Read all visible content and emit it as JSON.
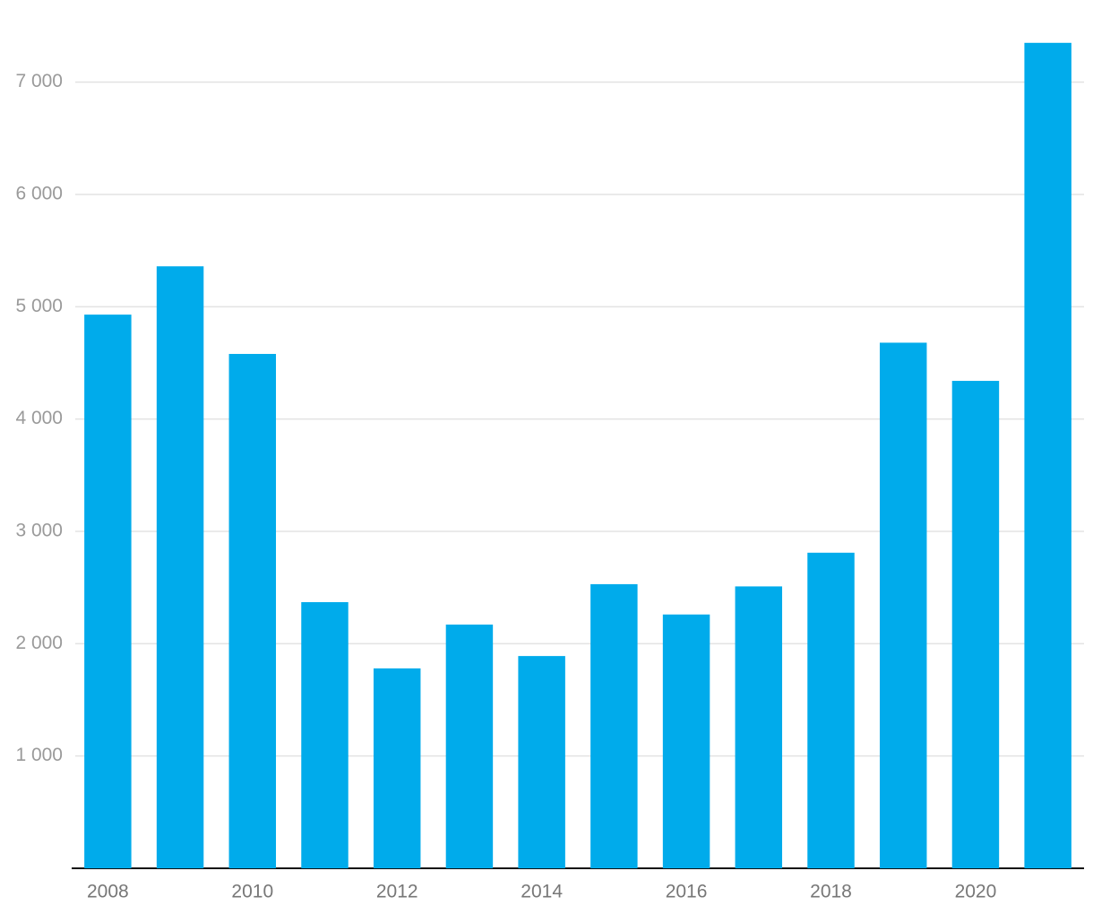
{
  "chart_data": {
    "type": "bar",
    "categories": [
      "2008",
      null,
      "2010",
      null,
      "2012",
      null,
      "2014",
      null,
      "2016",
      null,
      "2018",
      null,
      "2020",
      null
    ],
    "values": [
      4930,
      5360,
      4580,
      2370,
      1780,
      2170,
      1890,
      2530,
      2260,
      2510,
      2810,
      4680,
      4340,
      7350
    ],
    "color": "#00abeb",
    "ylim": [
      0,
      7500
    ],
    "yticks": [
      {
        "value": 1000,
        "label": "1 000"
      },
      {
        "value": 2000,
        "label": "2 000"
      },
      {
        "value": 3000,
        "label": "3 000"
      },
      {
        "value": 4000,
        "label": "4 000"
      },
      {
        "value": 5000,
        "label": "5 000"
      },
      {
        "value": 6000,
        "label": "6 000"
      },
      {
        "value": 7000,
        "label": "7 000"
      }
    ],
    "grid": true
  }
}
